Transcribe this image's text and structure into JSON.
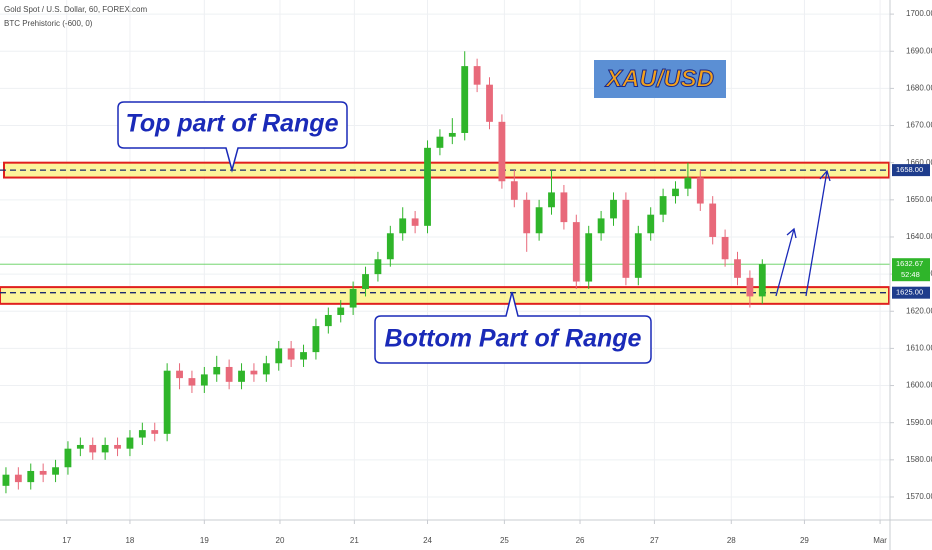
{
  "chart_data": {
    "type": "candlestick",
    "title": "Gold Spot / U.S. Dollar, 60, FOREX.com",
    "subtitle": "BTC Prehistoric (-600, 0)",
    "up_color": "#2fb52a",
    "down_color": "#e8697a",
    "candles": [
      [
        1573,
        1578,
        1571,
        1576
      ],
      [
        1576,
        1578,
        1572,
        1574
      ],
      [
        1574,
        1579,
        1572,
        1577
      ],
      [
        1577,
        1579,
        1574,
        1576
      ],
      [
        1576,
        1580,
        1574,
        1578
      ],
      [
        1578,
        1585,
        1576,
        1583
      ],
      [
        1583,
        1586,
        1581,
        1584
      ],
      [
        1584,
        1586,
        1580,
        1582
      ],
      [
        1582,
        1586,
        1580,
        1584
      ],
      [
        1584,
        1586,
        1581,
        1583
      ],
      [
        1583,
        1588,
        1581,
        1586
      ],
      [
        1586,
        1590,
        1584,
        1588
      ],
      [
        1588,
        1590,
        1585,
        1587
      ],
      [
        1587,
        1606,
        1585,
        1604
      ],
      [
        1604,
        1606,
        1599,
        1602
      ],
      [
        1602,
        1604,
        1598,
        1600
      ],
      [
        1600,
        1605,
        1598,
        1603
      ],
      [
        1603,
        1608,
        1601,
        1605
      ],
      [
        1605,
        1607,
        1599,
        1601
      ],
      [
        1601,
        1606,
        1599,
        1604
      ],
      [
        1604,
        1606,
        1601,
        1603
      ],
      [
        1603,
        1608,
        1601,
        1606
      ],
      [
        1606,
        1612,
        1604,
        1610
      ],
      [
        1610,
        1612,
        1605,
        1607
      ],
      [
        1607,
        1611,
        1605,
        1609
      ],
      [
        1609,
        1618,
        1607,
        1616
      ],
      [
        1616,
        1621,
        1614,
        1619
      ],
      [
        1619,
        1623,
        1617,
        1621
      ],
      [
        1621,
        1628,
        1619,
        1626
      ],
      [
        1626,
        1632,
        1624,
        1630
      ],
      [
        1630,
        1636,
        1628,
        1634
      ],
      [
        1634,
        1643,
        1632,
        1641
      ],
      [
        1641,
        1648,
        1639,
        1645
      ],
      [
        1645,
        1647,
        1641,
        1643
      ],
      [
        1643,
        1666,
        1641,
        1664
      ],
      [
        1664,
        1669,
        1662,
        1667
      ],
      [
        1667,
        1672,
        1665,
        1668
      ],
      [
        1668,
        1690,
        1666,
        1686
      ],
      [
        1686,
        1688,
        1679,
        1681
      ],
      [
        1681,
        1683,
        1669,
        1671
      ],
      [
        1671,
        1673,
        1653,
        1655
      ],
      [
        1655,
        1658,
        1648,
        1650
      ],
      [
        1650,
        1652,
        1636,
        1641
      ],
      [
        1641,
        1650,
        1639,
        1648
      ],
      [
        1648,
        1658,
        1646,
        1652
      ],
      [
        1652,
        1654,
        1642,
        1644
      ],
      [
        1644,
        1646,
        1626,
        1628
      ],
      [
        1628,
        1643,
        1626,
        1641
      ],
      [
        1641,
        1647,
        1639,
        1645
      ],
      [
        1645,
        1652,
        1643,
        1650
      ],
      [
        1650,
        1652,
        1627,
        1629
      ],
      [
        1629,
        1643,
        1627,
        1641
      ],
      [
        1641,
        1648,
        1639,
        1646
      ],
      [
        1646,
        1653,
        1644,
        1651
      ],
      [
        1651,
        1655,
        1649,
        1653
      ],
      [
        1653,
        1660,
        1651,
        1656
      ],
      [
        1656,
        1658,
        1647,
        1649
      ],
      [
        1649,
        1651,
        1638,
        1640
      ],
      [
        1640,
        1642,
        1632,
        1634
      ],
      [
        1634,
        1636,
        1627,
        1629
      ],
      [
        1629,
        1631,
        1621,
        1624
      ],
      [
        1624,
        1634,
        1622,
        1632.67
      ]
    ],
    "xlim": [
      -0.48,
      71.3
    ],
    "xticks": [
      {
        "value": 4.9,
        "label": "17"
      },
      {
        "value": 10,
        "label": "18"
      },
      {
        "value": 16,
        "label": "19"
      },
      {
        "value": 22.1,
        "label": "20"
      },
      {
        "value": 28.1,
        "label": "21"
      },
      {
        "value": 34,
        "label": "24"
      },
      {
        "value": 40.2,
        "label": "25"
      },
      {
        "value": 46.3,
        "label": "26"
      },
      {
        "value": 52.3,
        "label": "27"
      },
      {
        "value": 58.5,
        "label": "28"
      },
      {
        "value": 64.4,
        "label": "29"
      },
      {
        "value": 70.5,
        "label": "Mar"
      }
    ],
    "ylim": [
      1563.8,
      1703.8
    ],
    "yticks": [
      {
        "value": 1570,
        "label": "1570.00"
      },
      {
        "value": 1580,
        "label": "1580.00"
      },
      {
        "value": 1590,
        "label": "1590.00"
      },
      {
        "value": 1600,
        "label": "1600.00"
      },
      {
        "value": 1610,
        "label": "1610.00"
      },
      {
        "value": 1620,
        "label": "1620.00"
      },
      {
        "value": 1630,
        "label": "1630.00"
      },
      {
        "value": 1640,
        "label": "1640.00"
      },
      {
        "value": 1650,
        "label": "1650.00"
      },
      {
        "value": 1660,
        "label": "1660.00"
      },
      {
        "value": 1670,
        "label": "1670.00"
      },
      {
        "value": 1680,
        "label": "1680.00"
      },
      {
        "value": 1690,
        "label": "1690.00"
      },
      {
        "value": 1700,
        "label": "1700.00"
      }
    ],
    "grid": true,
    "zones": [
      {
        "low": 1656,
        "high": 1660,
        "level": {
          "value": 1658,
          "label": "1658.00"
        }
      },
      {
        "low": 1622,
        "high": 1626.5,
        "level": {
          "value": 1625,
          "label": "1625.00"
        }
      }
    ],
    "last_price": 1632.67,
    "countdown": "52:48",
    "annotations": {
      "top": "Top part of Range",
      "bottom": "Bottom Part of Range",
      "symbol": "XAU/USD"
    }
  }
}
